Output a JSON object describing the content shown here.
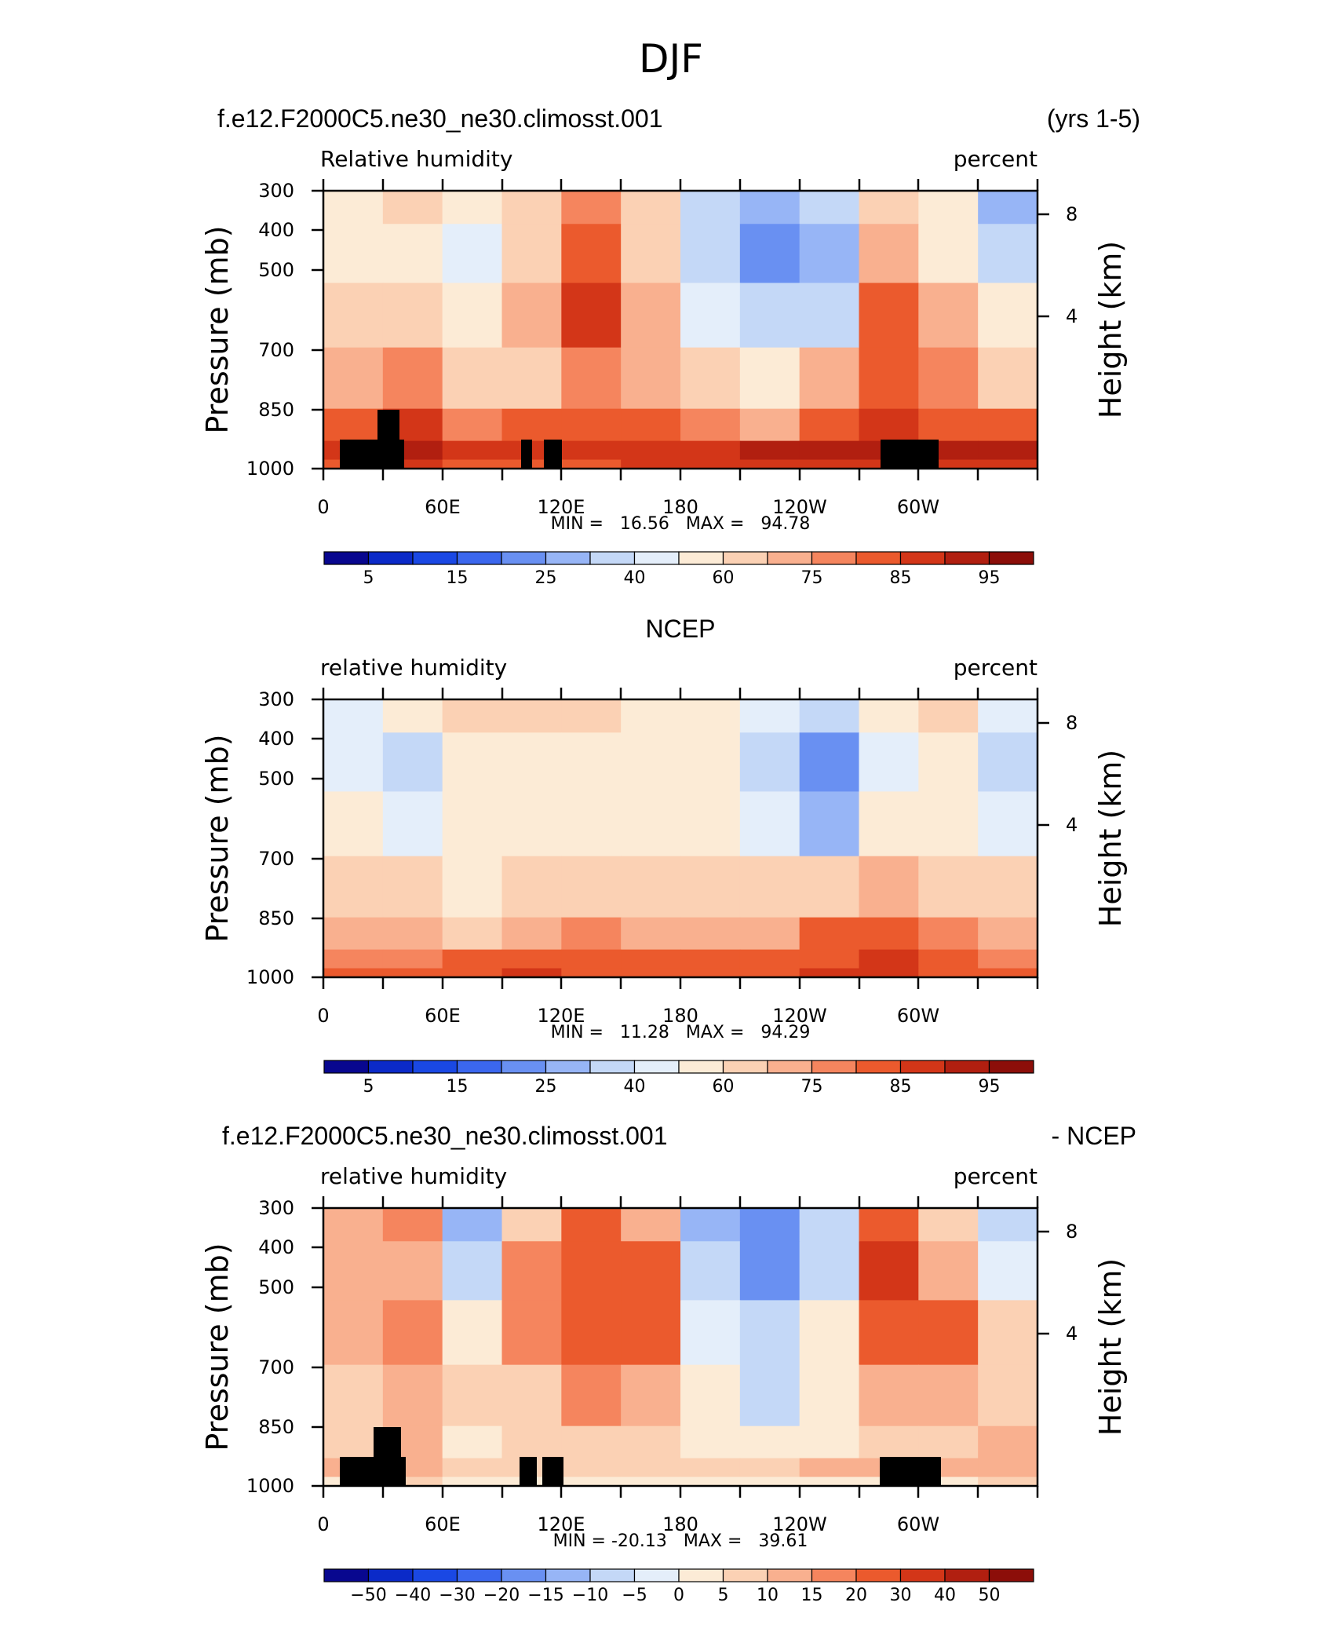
{
  "title": "DJF",
  "panel_headers": {
    "case_name": "f.e12.F2000C5.ne30_ne30.climosst.001",
    "years": "(yrs 1-5)",
    "obs_name": "NCEP",
    "diff_suffix": "- NCEP"
  },
  "axis_text": {
    "pressure": "Pressure (mb)",
    "height": "Height (km)",
    "pressure_ticks": [
      "300",
      "400",
      "500",
      "700",
      "850",
      "1000"
    ],
    "height_ticks": [
      "8",
      "4"
    ],
    "lon_ticks": [
      "0",
      "60E",
      "120E",
      "180",
      "120W",
      "60W"
    ]
  },
  "panels": [
    {
      "var_label": "Relative humidity",
      "units": "percent",
      "min_max": "MIN =   16.56   MAX =   94.78"
    },
    {
      "var_label": "relative humidity",
      "units": "percent",
      "min_max": "MIN =   11.28   MAX =   94.29"
    },
    {
      "var_label": "relative humidity",
      "units": "percent",
      "min_max": "MIN = -20.13   MAX =   39.61"
    }
  ],
  "colorbars": {
    "abs_labels": [
      "5",
      "15",
      "25",
      "40",
      "60",
      "75",
      "85",
      "95"
    ],
    "diff_labels": [
      "-50",
      "-40",
      "-30",
      "-20",
      "-15",
      "-10",
      "-5",
      "0",
      "5",
      "10",
      "15",
      "20",
      "30",
      "40",
      "50"
    ],
    "colors": [
      "#08078f",
      "#0b2ac8",
      "#1a48e4",
      "#3b67ee",
      "#6990f2",
      "#97b5f6",
      "#c4d8f7",
      "#e4eefa",
      "#fcebd6",
      "#fbd1b4",
      "#f9b08f",
      "#f5855e",
      "#eb5a2d",
      "#d33618",
      "#b11f10",
      "#8c0e09"
    ]
  },
  "chart_data": [
    {
      "type": "heatmap",
      "title": "f.e12.F2000C5.ne30_ne30.climosst.001  (yrs 1-5)",
      "variable": "Relative humidity",
      "units": "percent",
      "xlabel": "",
      "ylabel": "Pressure (mb)",
      "y2label": "Height (km)",
      "xlim": [
        0,
        360
      ],
      "ylim": [
        1000,
        300
      ],
      "y_scale": "log",
      "x_ticks": [
        "0",
        "60E",
        "120E",
        "180",
        "120W",
        "60W"
      ],
      "y_ticks": [
        300,
        400,
        500,
        700,
        850,
        1000
      ],
      "y2_ticks": [
        8,
        4
      ],
      "levels": [
        5,
        10,
        15,
        20,
        25,
        30,
        40,
        50,
        60,
        70,
        75,
        80,
        85,
        90,
        95
      ],
      "min": 16.56,
      "max": 94.78,
      "x": [
        0,
        30,
        60,
        90,
        120,
        150,
        180,
        210,
        240,
        270,
        300,
        330
      ],
      "y": [
        300,
        400,
        500,
        700,
        850,
        925,
        1000
      ],
      "z": [
        [
          55,
          66,
          56,
          62,
          78,
          62,
          38,
          28,
          32,
          66,
          58,
          28
        ],
        [
          55,
          52,
          42,
          64,
          82,
          66,
          34,
          22,
          26,
          70,
          58,
          32
        ],
        [
          64,
          62,
          58,
          74,
          86,
          72,
          40,
          30,
          34,
          80,
          70,
          52
        ],
        [
          72,
          78,
          62,
          66,
          78,
          70,
          60,
          58,
          70,
          84,
          76,
          68
        ],
        [
          82,
          86,
          78,
          80,
          82,
          80,
          76,
          74,
          80,
          86,
          84,
          80
        ],
        [
          88,
          90,
          88,
          88,
          88,
          88,
          88,
          90,
          92,
          92,
          90,
          90
        ],
        [
          82,
          86,
          84,
          84,
          84,
          86,
          86,
          86,
          88,
          88,
          86,
          86
        ]
      ]
    },
    {
      "type": "heatmap",
      "title": "NCEP",
      "variable": "relative humidity",
      "units": "percent",
      "xlabel": "",
      "ylabel": "Pressure (mb)",
      "y2label": "Height (km)",
      "xlim": [
        0,
        360
      ],
      "ylim": [
        1000,
        300
      ],
      "y_scale": "log",
      "x_ticks": [
        "0",
        "60E",
        "120E",
        "180",
        "120W",
        "60W"
      ],
      "y_ticks": [
        300,
        400,
        500,
        700,
        850,
        1000
      ],
      "y2_ticks": [
        8,
        4
      ],
      "levels": [
        5,
        10,
        15,
        20,
        25,
        30,
        40,
        50,
        60,
        70,
        75,
        80,
        85,
        90,
        95
      ],
      "min": 11.28,
      "max": 94.29,
      "x": [
        0,
        30,
        60,
        90,
        120,
        150,
        180,
        210,
        240,
        270,
        300,
        330
      ],
      "y": [
        300,
        400,
        500,
        700,
        850,
        925,
        1000
      ],
      "z": [
        [
          48,
          56,
          60,
          62,
          60,
          56,
          56,
          48,
          30,
          56,
          60,
          40
        ],
        [
          46,
          38,
          50,
          52,
          56,
          52,
          50,
          36,
          20,
          44,
          50,
          38
        ],
        [
          50,
          48,
          52,
          56,
          56,
          56,
          52,
          40,
          28,
          50,
          52,
          44
        ],
        [
          62,
          66,
          52,
          60,
          64,
          62,
          60,
          60,
          66,
          72,
          62,
          60
        ],
        [
          70,
          72,
          68,
          74,
          76,
          72,
          72,
          74,
          80,
          84,
          76,
          70
        ],
        [
          76,
          78,
          80,
          82,
          82,
          80,
          80,
          80,
          84,
          86,
          80,
          76
        ],
        [
          80,
          80,
          84,
          86,
          84,
          82,
          84,
          84,
          86,
          88,
          84,
          80
        ]
      ]
    },
    {
      "type": "heatmap",
      "title": "f.e12.F2000C5.ne30_ne30.climosst.001  - NCEP",
      "variable": "relative humidity",
      "units": "percent",
      "xlabel": "",
      "ylabel": "Pressure (mb)",
      "y2label": "Height (km)",
      "xlim": [
        0,
        360
      ],
      "ylim": [
        1000,
        300
      ],
      "y_scale": "log",
      "x_ticks": [
        "0",
        "60E",
        "120E",
        "180",
        "120W",
        "60W"
      ],
      "y_ticks": [
        300,
        400,
        500,
        700,
        850,
        1000
      ],
      "y2_ticks": [
        8,
        4
      ],
      "levels": [
        -50,
        -40,
        -30,
        -20,
        -15,
        -10,
        -5,
        0,
        5,
        10,
        15,
        20,
        30,
        40,
        50
      ],
      "min": -20.13,
      "max": 39.61,
      "x": [
        0,
        30,
        60,
        90,
        120,
        150,
        180,
        210,
        240,
        270,
        300,
        330
      ],
      "y": [
        300,
        400,
        500,
        700,
        850,
        925,
        1000
      ],
      "z": [
        [
          12,
          18,
          -12,
          8,
          22,
          14,
          -12,
          -18,
          -8,
          26,
          8,
          -8
        ],
        [
          12,
          14,
          -10,
          18,
          28,
          22,
          -6,
          -16,
          -6,
          30,
          14,
          -4
        ],
        [
          14,
          18,
          0,
          18,
          26,
          22,
          -2,
          -10,
          4,
          26,
          22,
          6
        ],
        [
          8,
          10,
          8,
          8,
          18,
          12,
          0,
          -8,
          4,
          14,
          12,
          8
        ],
        [
          6,
          12,
          4,
          6,
          8,
          6,
          2,
          2,
          2,
          6,
          8,
          10
        ],
        [
          10,
          12,
          8,
          8,
          8,
          8,
          8,
          8,
          12,
          10,
          12,
          14
        ],
        [
          4,
          6,
          2,
          2,
          4,
          4,
          2,
          0,
          4,
          2,
          4,
          6
        ]
      ]
    }
  ]
}
